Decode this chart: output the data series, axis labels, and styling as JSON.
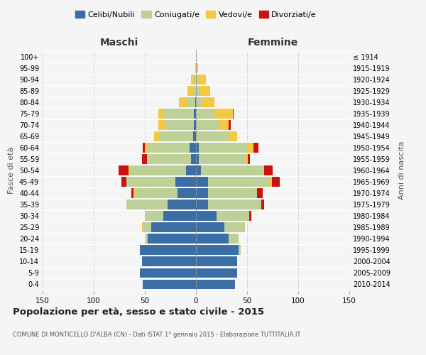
{
  "age_groups": [
    "0-4",
    "5-9",
    "10-14",
    "15-19",
    "20-24",
    "25-29",
    "30-34",
    "35-39",
    "40-44",
    "45-49",
    "50-54",
    "55-59",
    "60-64",
    "65-69",
    "70-74",
    "75-79",
    "80-84",
    "85-89",
    "90-94",
    "95-99",
    "100+"
  ],
  "birth_years": [
    "2010-2014",
    "2005-2009",
    "2000-2004",
    "1995-1999",
    "1990-1994",
    "1985-1989",
    "1980-1984",
    "1975-1979",
    "1970-1974",
    "1965-1969",
    "1960-1964",
    "1955-1959",
    "1950-1954",
    "1945-1949",
    "1940-1944",
    "1935-1939",
    "1930-1934",
    "1925-1929",
    "1920-1924",
    "1915-1919",
    "≤ 1914"
  ],
  "colors": {
    "celibi": "#3A6EA5",
    "coniugati": "#BDD097",
    "vedovi": "#F5C842",
    "divorziati": "#CC1111"
  },
  "maschi": {
    "celibi": [
      52,
      55,
      53,
      55,
      47,
      44,
      32,
      28,
      18,
      20,
      10,
      5,
      6,
      3,
      2,
      2,
      1,
      0,
      0,
      0,
      0
    ],
    "coniugati": [
      0,
      0,
      0,
      0,
      2,
      8,
      18,
      40,
      42,
      48,
      55,
      42,
      42,
      33,
      28,
      30,
      8,
      3,
      2,
      0,
      0
    ],
    "vedovi": [
      0,
      0,
      0,
      0,
      0,
      1,
      0,
      0,
      1,
      0,
      1,
      1,
      2,
      5,
      7,
      5,
      8,
      5,
      3,
      1,
      0
    ],
    "divorziati": [
      0,
      0,
      0,
      0,
      0,
      0,
      0,
      0,
      2,
      5,
      10,
      5,
      2,
      0,
      0,
      0,
      0,
      0,
      0,
      0,
      0
    ]
  },
  "femmine": {
    "celibi": [
      38,
      40,
      40,
      42,
      32,
      28,
      20,
      12,
      12,
      12,
      5,
      3,
      3,
      0,
      0,
      0,
      0,
      0,
      0,
      0,
      0
    ],
    "coniugati": [
      0,
      0,
      0,
      2,
      10,
      20,
      32,
      52,
      48,
      60,
      60,
      45,
      48,
      32,
      22,
      18,
      6,
      4,
      2,
      0,
      0
    ],
    "vedovi": [
      0,
      0,
      0,
      0,
      0,
      0,
      0,
      0,
      0,
      2,
      2,
      3,
      5,
      8,
      10,
      18,
      12,
      10,
      8,
      2,
      1
    ],
    "divorziati": [
      0,
      0,
      0,
      0,
      0,
      0,
      2,
      3,
      5,
      8,
      8,
      2,
      5,
      0,
      2,
      1,
      0,
      0,
      0,
      0,
      0
    ]
  },
  "title": "Popolazione per età, sesso e stato civile - 2015",
  "subtitle": "COMUNE DI MONTICELLO D'ALBA (CN) - Dati ISTAT 1° gennaio 2015 - Elaborazione TUTTITALIA.IT",
  "ylabel_left": "Fasce di età",
  "ylabel_right": "Anni di nascita",
  "xlabel_left": "Maschi",
  "xlabel_right": "Femmine",
  "xlim": 150,
  "legend_labels": [
    "Celibi/Nubili",
    "Coniugati/e",
    "Vedovi/e",
    "Divorziati/e"
  ],
  "background_color": "#f5f5f5",
  "bar_height": 0.85
}
